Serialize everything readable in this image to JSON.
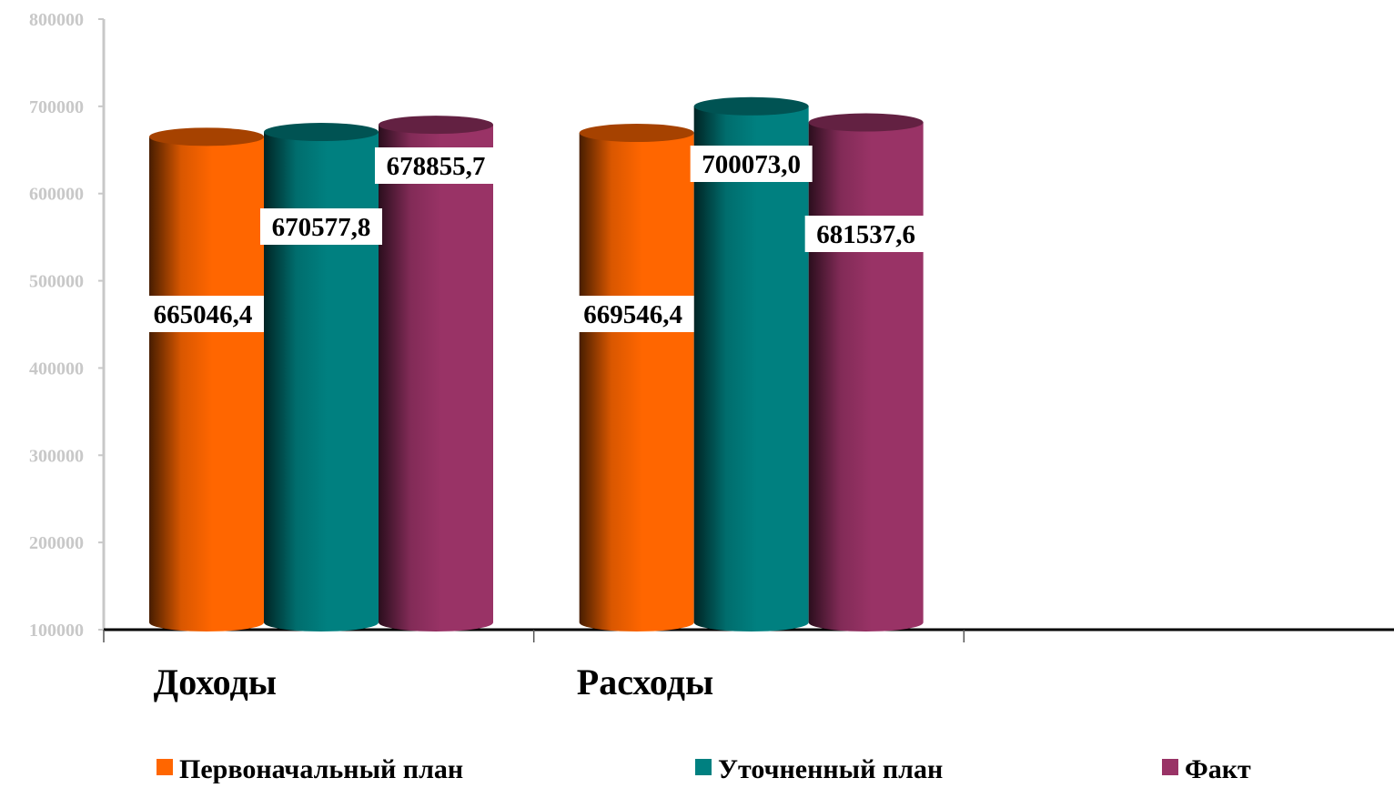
{
  "chart_data": {
    "type": "bar",
    "style": "3d-cylinder",
    "categories": [
      "Доходы",
      "Расходы",
      ""
    ],
    "series": [
      {
        "name": "Первоначальный план",
        "color": "#ff6600",
        "values": [
          665046.4,
          669546.4,
          null
        ]
      },
      {
        "name": "Уточненный план",
        "color": "#008080",
        "values": [
          670577.8,
          700073.0,
          null
        ]
      },
      {
        "name": "Факт",
        "color": "#993366",
        "values": [
          678855.7,
          681537.6,
          null
        ]
      }
    ],
    "data_labels": [
      [
        "665046,4",
        "669546,4"
      ],
      [
        "670577,8",
        "700073,0"
      ],
      [
        "678855,7",
        "681537,6"
      ]
    ],
    "y_ticks": [
      "100000",
      "200000",
      "300000",
      "400000",
      "500000",
      "600000",
      "700000",
      "800000"
    ],
    "ylim": [
      100000,
      800000
    ],
    "legend_position": "bottom",
    "grid": false
  }
}
